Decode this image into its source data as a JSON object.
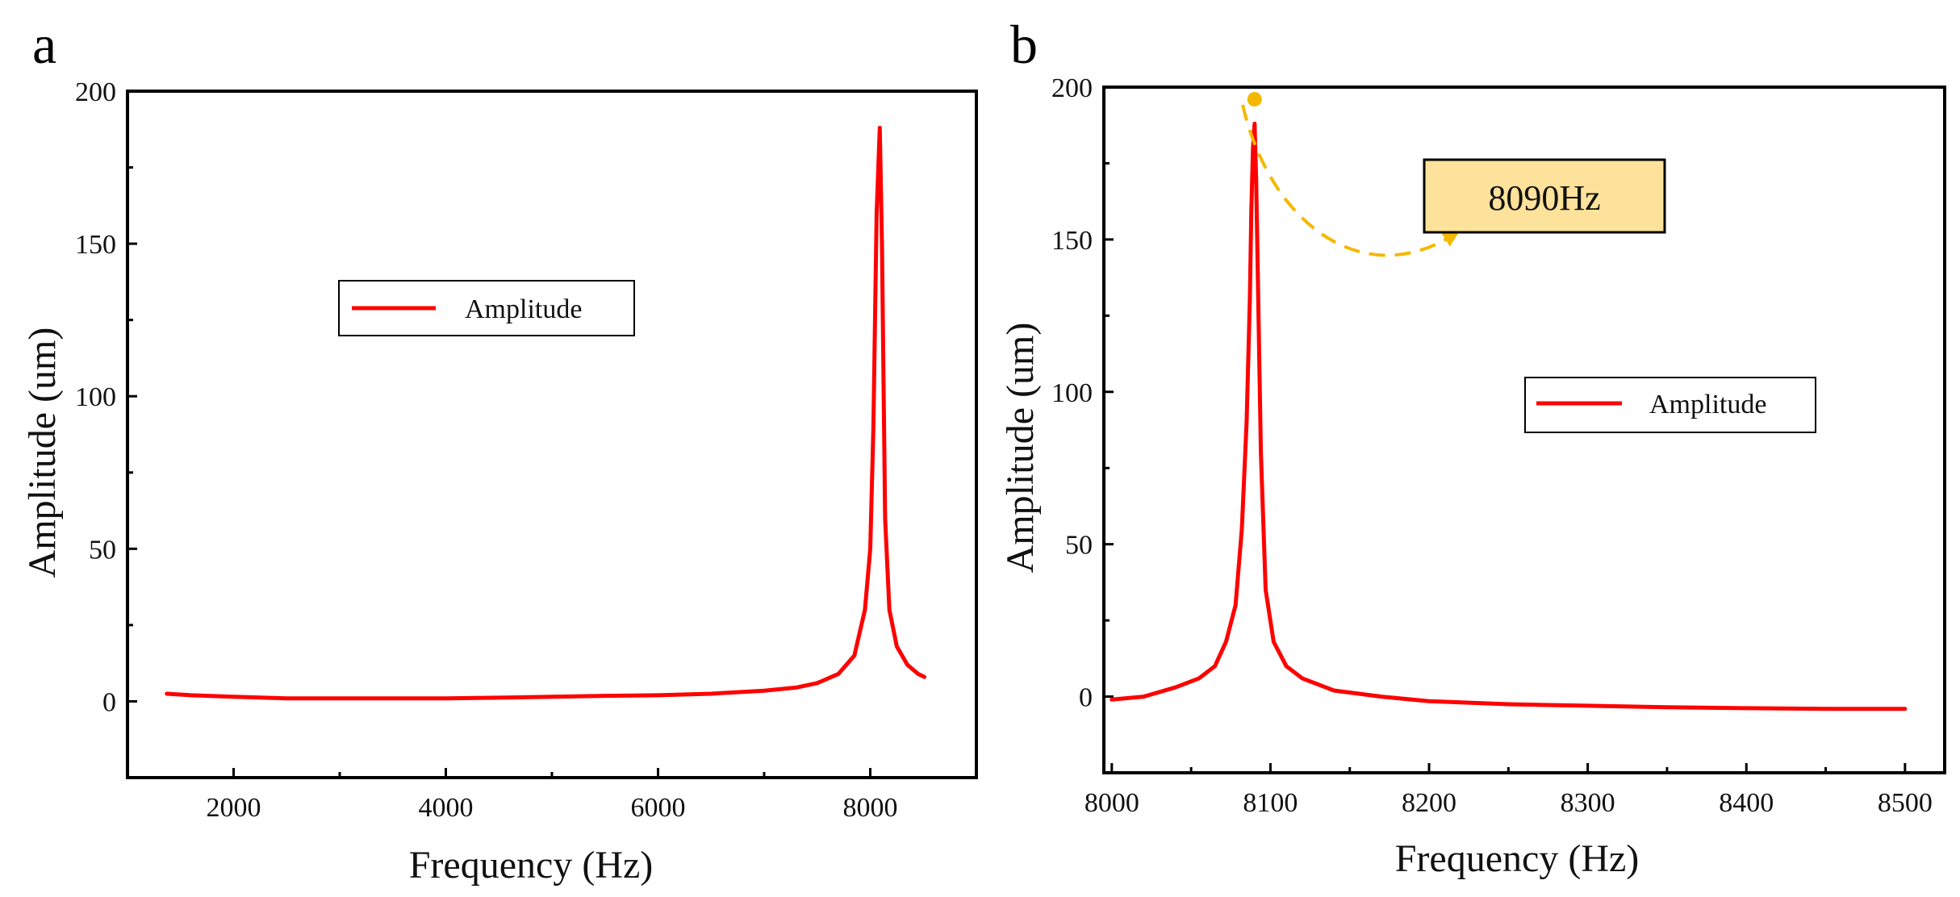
{
  "chart_data": [
    {
      "panel": "a",
      "type": "line",
      "title": "",
      "xlabel": "Frequency (Hz)",
      "ylabel": "Amplitude (um)",
      "xlim": [
        1000,
        9000
      ],
      "ylim": [
        -25,
        200
      ],
      "xticks": [
        2000,
        4000,
        6000,
        8000
      ],
      "yticks": [
        0,
        50,
        100,
        150,
        200
      ],
      "grid": false,
      "legend_position": "upper-left",
      "series": [
        {
          "name": "Amplitude",
          "color": "#ff0000",
          "x": [
            1370,
            1600,
            2000,
            2500,
            3000,
            3500,
            4000,
            4500,
            5000,
            5500,
            6000,
            6500,
            7000,
            7300,
            7500,
            7700,
            7850,
            7950,
            8000,
            8030,
            8060,
            8090,
            8110,
            8140,
            8180,
            8250,
            8350,
            8450,
            8510
          ],
          "y": [
            2.5,
            2,
            1.5,
            1,
            1,
            1,
            1,
            1.2,
            1.5,
            1.8,
            2,
            2.5,
            3.5,
            4.5,
            6,
            9,
            15,
            30,
            50,
            90,
            160,
            188,
            150,
            60,
            30,
            18,
            12,
            9,
            8
          ]
        }
      ]
    },
    {
      "panel": "b",
      "type": "line",
      "title": "",
      "xlabel": "Frequency (Hz)",
      "ylabel": "Amplitude (um)",
      "xlim": [
        7995,
        8525
      ],
      "ylim": [
        -25,
        200
      ],
      "xticks": [
        8000,
        8100,
        8200,
        8300,
        8400,
        8500
      ],
      "yticks": [
        0,
        50,
        100,
        150,
        200
      ],
      "grid": false,
      "legend_position": "center-right",
      "annotation": {
        "text": "8090Hz",
        "x": 8090,
        "y": 196,
        "marker_color": "#f5b800",
        "box_color": "#fce29a"
      },
      "series": [
        {
          "name": "Amplitude",
          "color": "#ff0000",
          "x": [
            8000,
            8020,
            8040,
            8055,
            8065,
            8072,
            8078,
            8082,
            8085,
            8087,
            8088,
            8089,
            8090,
            8091,
            8092,
            8094,
            8097,
            8102,
            8110,
            8120,
            8140,
            8170,
            8200,
            8250,
            8300,
            8350,
            8400,
            8450,
            8500
          ],
          "y": [
            -1,
            0,
            3,
            6,
            10,
            18,
            30,
            55,
            90,
            130,
            160,
            180,
            188,
            170,
            140,
            80,
            35,
            18,
            10,
            6,
            2,
            0,
            -1.5,
            -2.5,
            -3,
            -3.5,
            -3.8,
            -4,
            -4
          ]
        }
      ]
    }
  ]
}
